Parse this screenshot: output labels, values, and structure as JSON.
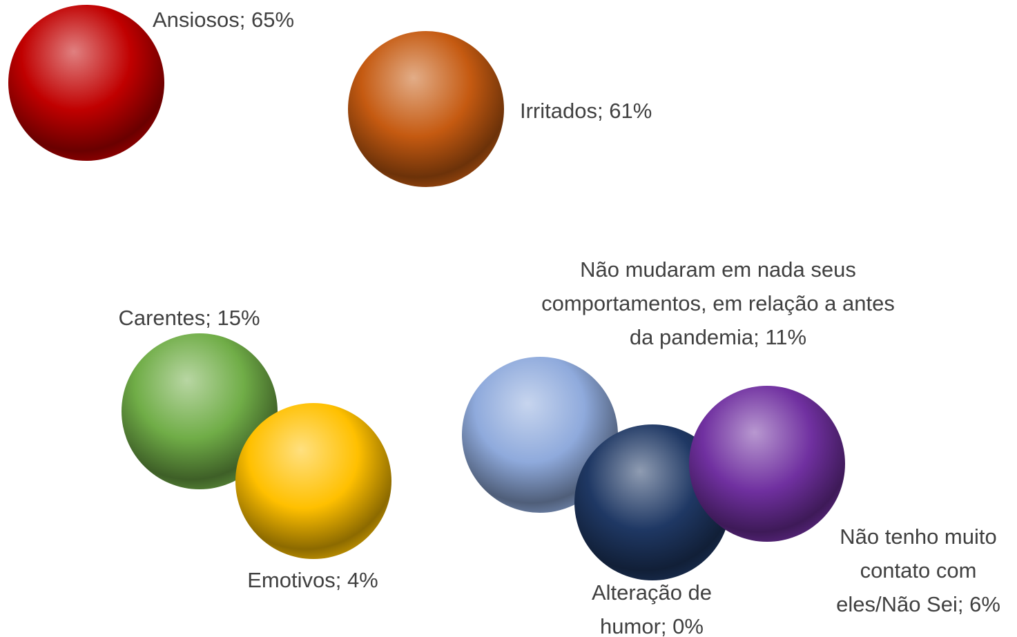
{
  "chart_data": {
    "type": "bubble",
    "value_labels": [
      "Ansiosos; 65%",
      "Irritados; 61%",
      "Carentes; 15%",
      "Emotivos; 4%",
      "Não mudaram em nada seus comportamentos, em relação a antes da pandemia; 11%",
      "Alteração de humor; 0%",
      "Não tenho muito contato com eles/Não Sei; 6%"
    ],
    "values": [
      65,
      61,
      15,
      4,
      11,
      0,
      6
    ],
    "colors": [
      "#c00000",
      "#c55a11",
      "#70ad47",
      "#ffc000",
      "#8faadc",
      "#1f3864",
      "#7030a0"
    ]
  }
}
